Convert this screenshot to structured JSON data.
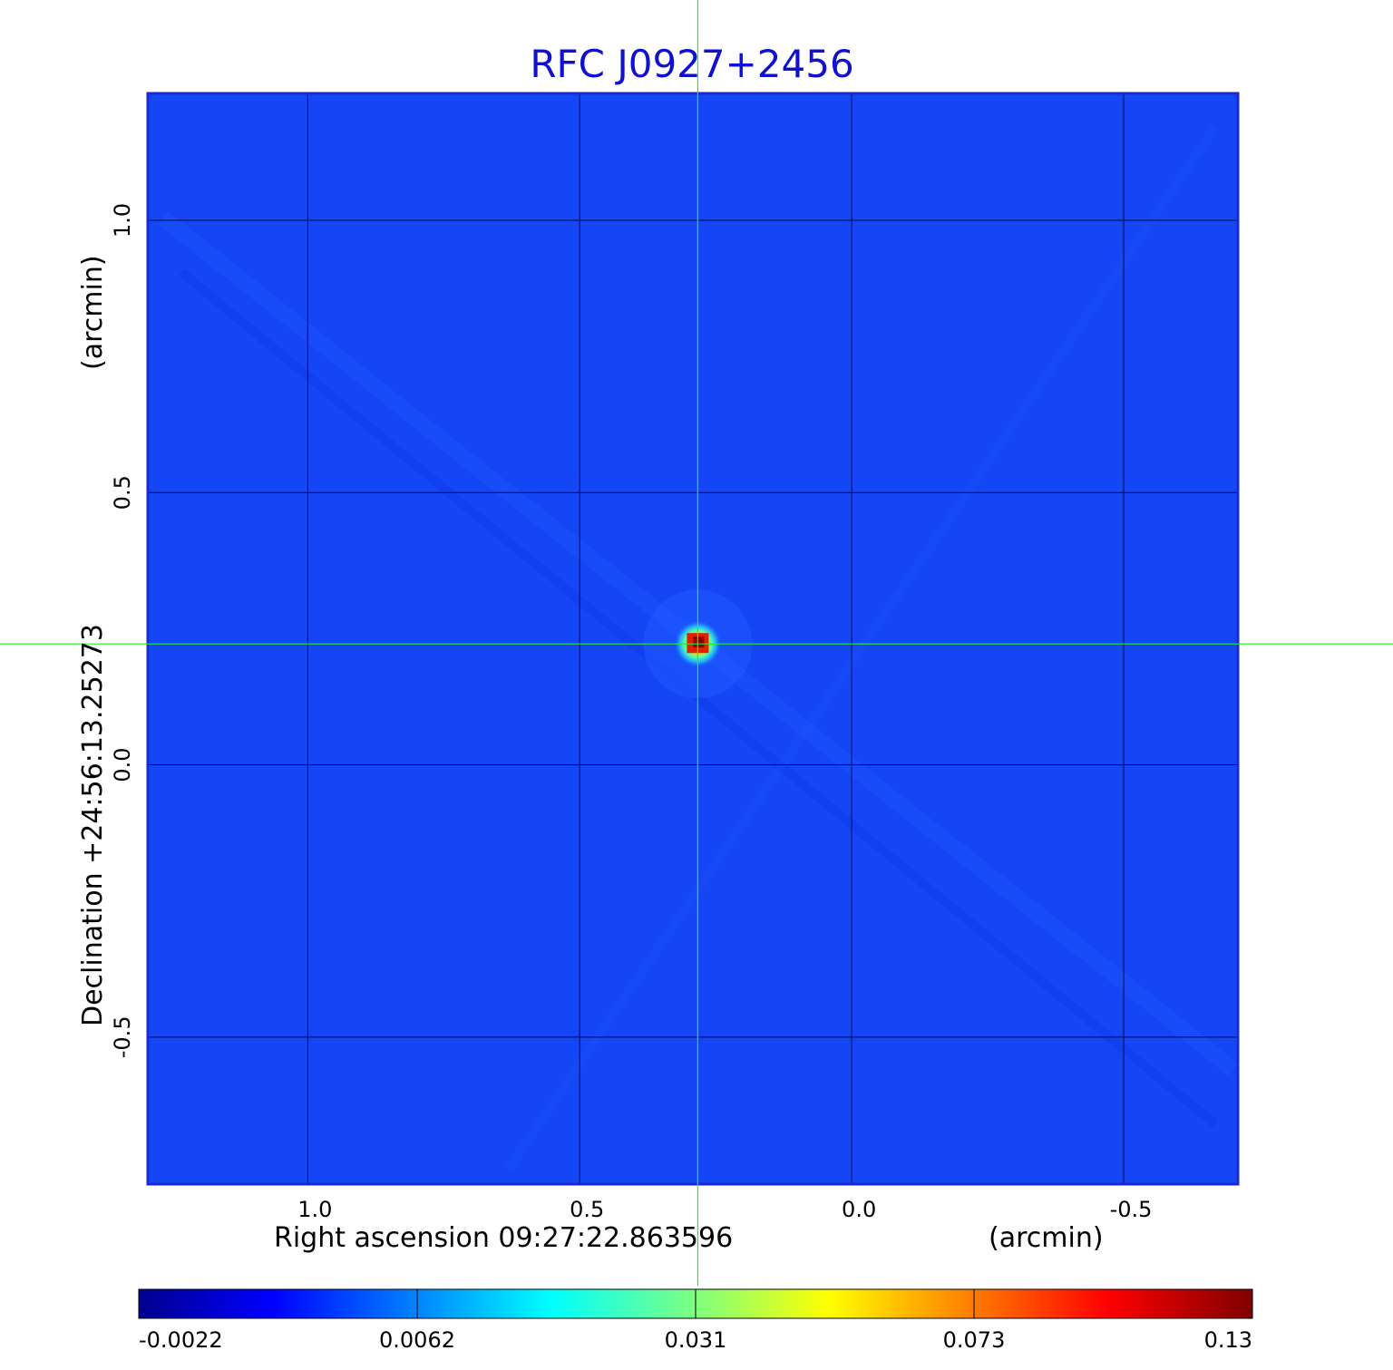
{
  "chart_data": {
    "type": "heatmap",
    "title": "RFC J0927+2456",
    "xlabel": "Right ascension  09:27:22.863596",
    "xunit": "(arcmin)",
    "ylabel": "Declination  +24:56:13.25273",
    "yunit": "(arcmin)",
    "x_axis": {
      "range": [
        1.294,
        -0.71
      ],
      "reversed": true,
      "ticks": [
        1.0,
        0.5,
        0.0,
        -0.5
      ],
      "tick_labels": [
        "1.0",
        "0.5",
        "0.0",
        "-0.5"
      ]
    },
    "y_axis": {
      "range": [
        -0.77,
        1.233
      ],
      "ticks": [
        -0.5,
        0.0,
        0.5,
        1.0
      ],
      "tick_labels": [
        "-0.5",
        "0.0",
        "0.5",
        "1.0"
      ]
    },
    "grid": true,
    "crosshair": {
      "x": 0.283,
      "y": 0.222
    },
    "source_peak": {
      "x": 0.283,
      "y": 0.222,
      "value": 0.13
    },
    "colorbar": {
      "colormap": "jet",
      "min": -0.0022,
      "max": 0.13,
      "tick_labels": [
        "-0.0022",
        "0.0062",
        "0.031",
        "0.073",
        "0.13"
      ]
    },
    "colors": {
      "title": "#1010d0",
      "background_field": "#1446f5",
      "grid": "#0a0a3a",
      "crosshair": "#22ee22",
      "frame": "#1a2ad0"
    }
  }
}
